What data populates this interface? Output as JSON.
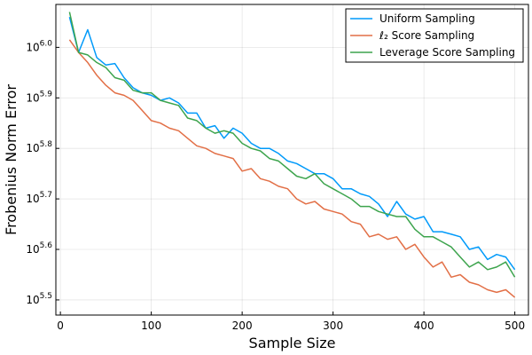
{
  "chart_data": {
    "type": "line",
    "xlabel": "Sample Size",
    "ylabel": "Frobenius Norm Error",
    "xlim": [
      -5,
      515
    ],
    "ylim": [
      5.47,
      6.085
    ],
    "y_scale": "log10",
    "grid": true,
    "legend_position": "top-right",
    "x_ticks": [
      0,
      100,
      200,
      300,
      400,
      500
    ],
    "y_ticks": [
      {
        "exp": 5.5,
        "base": "10",
        "power": "5.5"
      },
      {
        "exp": 5.6,
        "base": "10",
        "power": "5.6"
      },
      {
        "exp": 5.7,
        "base": "10",
        "power": "5.7"
      },
      {
        "exp": 5.8,
        "base": "10",
        "power": "5.8"
      },
      {
        "exp": 5.9,
        "base": "10",
        "power": "5.9"
      },
      {
        "exp": 6.0,
        "base": "10",
        "power": "6.0"
      }
    ],
    "x": [
      10,
      20,
      30,
      40,
      50,
      60,
      70,
      80,
      90,
      100,
      110,
      120,
      130,
      140,
      150,
      160,
      170,
      180,
      190,
      200,
      210,
      220,
      230,
      240,
      250,
      260,
      270,
      280,
      290,
      300,
      310,
      320,
      330,
      340,
      350,
      360,
      370,
      380,
      390,
      400,
      410,
      420,
      430,
      440,
      450,
      460,
      470,
      480,
      490,
      500
    ],
    "series": [
      {
        "name": "Uniform Sampling",
        "color": "#009AFA",
        "values_log10": [
          6.06,
          5.99,
          6.035,
          5.98,
          5.965,
          5.968,
          5.94,
          5.92,
          5.91,
          5.905,
          5.895,
          5.9,
          5.89,
          5.87,
          5.87,
          5.84,
          5.845,
          5.82,
          5.84,
          5.83,
          5.81,
          5.8,
          5.8,
          5.79,
          5.775,
          5.77,
          5.76,
          5.75,
          5.75,
          5.74,
          5.72,
          5.72,
          5.71,
          5.705,
          5.69,
          5.665,
          5.695,
          5.67,
          5.66,
          5.665,
          5.635,
          5.635,
          5.63,
          5.625,
          5.6,
          5.605,
          5.58,
          5.59,
          5.585,
          5.56
        ]
      },
      {
        "name": "ℓ₂ Score Sampling",
        "color": "#E26F46",
        "values_log10": [
          6.015,
          5.99,
          5.97,
          5.945,
          5.925,
          5.91,
          5.905,
          5.895,
          5.875,
          5.855,
          5.85,
          5.84,
          5.835,
          5.82,
          5.805,
          5.8,
          5.79,
          5.785,
          5.78,
          5.755,
          5.76,
          5.74,
          5.735,
          5.725,
          5.72,
          5.7,
          5.69,
          5.695,
          5.68,
          5.675,
          5.67,
          5.655,
          5.65,
          5.625,
          5.63,
          5.62,
          5.625,
          5.6,
          5.61,
          5.585,
          5.565,
          5.575,
          5.545,
          5.55,
          5.535,
          5.53,
          5.52,
          5.515,
          5.52,
          5.505
        ]
      },
      {
        "name": "Leverage Score Sampling",
        "color": "#3DA44D",
        "values_log10": [
          6.07,
          5.99,
          5.985,
          5.97,
          5.96,
          5.94,
          5.935,
          5.915,
          5.91,
          5.91,
          5.895,
          5.89,
          5.885,
          5.86,
          5.855,
          5.84,
          5.83,
          5.835,
          5.83,
          5.81,
          5.8,
          5.795,
          5.78,
          5.775,
          5.76,
          5.745,
          5.74,
          5.75,
          5.73,
          5.72,
          5.71,
          5.7,
          5.685,
          5.685,
          5.675,
          5.67,
          5.665,
          5.665,
          5.64,
          5.625,
          5.625,
          5.615,
          5.605,
          5.585,
          5.565,
          5.575,
          5.56,
          5.565,
          5.575,
          5.545
        ]
      }
    ]
  }
}
